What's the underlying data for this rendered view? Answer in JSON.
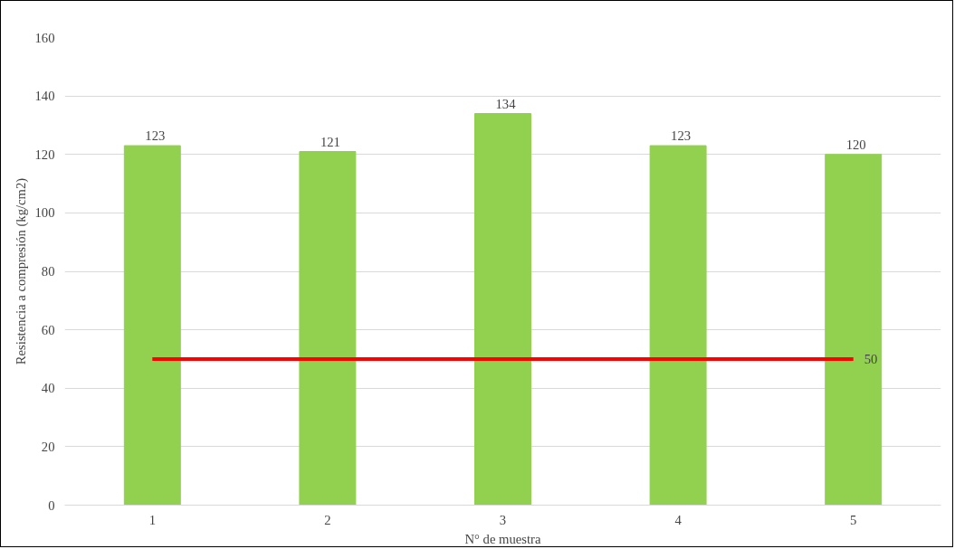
{
  "chart_data": {
    "type": "bar",
    "xlabel": "N° de muestra",
    "ylabel": "Resistencia a compresión (kg/cm2)",
    "categories": [
      "1",
      "2",
      "3",
      "4",
      "5"
    ],
    "series": [
      {
        "color": "#92d050",
        "values": [
          123,
          121,
          134,
          123,
          120
        ],
        "value_labels": [
          "123",
          "121",
          "134",
          "123",
          "120"
        ]
      },
      {
        "type": "line",
        "color": "#ff0000",
        "values": [
          50,
          50,
          50,
          50,
          50
        ],
        "value_labels": [
          null,
          null,
          null,
          null,
          "50"
        ]
      }
    ],
    "ylim": [
      0,
      160
    ],
    "yticks": [
      0,
      20,
      40,
      60,
      80,
      100,
      120,
      140,
      160
    ],
    "grid": "y"
  }
}
